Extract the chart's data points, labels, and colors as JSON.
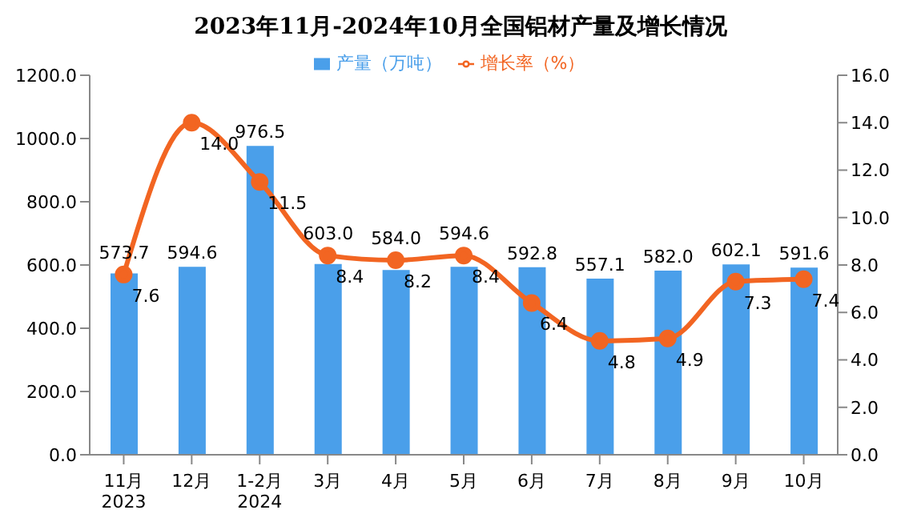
{
  "chart_data": {
    "type": "bar",
    "title": "2023年11月-2024年10月全国铝材产量及增长情况",
    "categories": [
      "11月\n2023",
      "12月",
      "1-2月\n2024",
      "3月",
      "4月",
      "5月",
      "6月",
      "7月",
      "8月",
      "9月",
      "10月"
    ],
    "series": [
      {
        "name": "产量（万吨）",
        "color": "#4a9fea",
        "values": [
          573.7,
          594.6,
          976.5,
          603.0,
          584.0,
          594.6,
          592.8,
          557.1,
          582.0,
          602.1,
          591.6
        ],
        "value_labels": [
          "573.7",
          "594.6",
          "976.5",
          "603.0",
          "584.0",
          "594.6",
          "592.8",
          "557.1",
          "582.0",
          "602.1",
          "591.6"
        ]
      },
      {
        "name": "增长率（%）",
        "type": "line",
        "axis": "y2",
        "color": "#f26522",
        "marker": "circle",
        "values": [
          7.6,
          14.0,
          11.5,
          8.4,
          8.2,
          8.4,
          6.4,
          4.8,
          4.9,
          7.3,
          7.4
        ],
        "value_labels": [
          "7.6",
          "14.0",
          "11.5",
          "8.4",
          "8.2",
          "8.4",
          "6.4",
          "4.8",
          "4.9",
          "7.3",
          "7.4"
        ]
      }
    ],
    "ylim": [
      0,
      1200
    ],
    "yticks": [
      {
        "value": 0,
        "label": "0.0"
      },
      {
        "value": 200,
        "label": "200.0"
      },
      {
        "value": 400,
        "label": "400.0"
      },
      {
        "value": 600,
        "label": "600.0"
      },
      {
        "value": 800,
        "label": "800.0"
      },
      {
        "value": 1000,
        "label": "1000.0"
      },
      {
        "value": 1200,
        "label": "1200.0"
      }
    ],
    "y2lim": [
      0,
      16
    ],
    "y2ticks": [
      {
        "value": 0,
        "label": "0.0"
      },
      {
        "value": 2,
        "label": "2.0"
      },
      {
        "value": 4,
        "label": "4.0"
      },
      {
        "value": 6,
        "label": "6.0"
      },
      {
        "value": 8,
        "label": "8.0"
      },
      {
        "value": 10,
        "label": "10.0"
      },
      {
        "value": 12,
        "label": "12.0"
      },
      {
        "value": 14,
        "label": "14.0"
      },
      {
        "value": 16,
        "label": "16.0"
      }
    ],
    "grid": false,
    "legend": "top"
  }
}
